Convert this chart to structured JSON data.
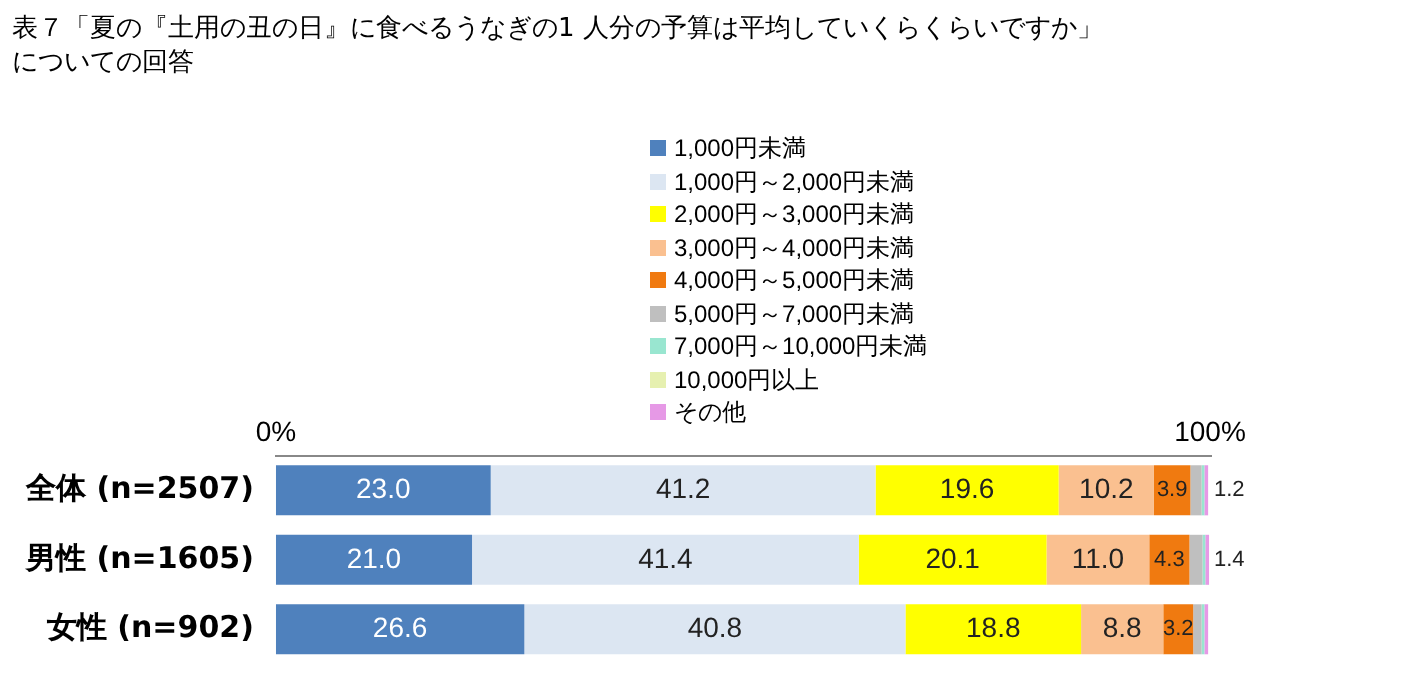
{
  "chart_data": {
    "type": "bar",
    "orientation": "horizontal",
    "stacked": true,
    "title": "表７「夏の『土用の丑の日』に食べるうなぎの1 人分の予算は平均していくらくらいですか」についての回答",
    "categories": [
      "全体 (n=2507)",
      "男性 (n=1605)",
      "女性 (n=902)"
    ],
    "xlim": [
      0,
      100
    ],
    "xticks": [
      {
        "value": 0,
        "label": "0%"
      },
      {
        "value": 100,
        "label": "100%"
      }
    ],
    "legend": "top",
    "series": [
      {
        "name": "1,000円未満",
        "color": "#4f81bd",
        "values": [
          23.0,
          21.0,
          26.6
        ],
        "value_labels": [
          "23.0",
          "21.0",
          "26.6"
        ]
      },
      {
        "name": "1,000円～2,000円未満",
        "color": "#dce6f2",
        "values": [
          41.2,
          41.4,
          40.8
        ],
        "value_labels": [
          "41.2",
          "41.4",
          "40.8"
        ]
      },
      {
        "name": "2,000円～3,000円未満",
        "color": "#ffff00",
        "values": [
          19.6,
          20.1,
          18.8
        ],
        "value_labels": [
          "19.6",
          "20.1",
          "18.8"
        ]
      },
      {
        "name": "3,000円～4,000円未満",
        "color": "#fac090",
        "values": [
          10.2,
          11.0,
          8.8
        ],
        "value_labels": [
          "10.2",
          "11.0",
          "8.8"
        ]
      },
      {
        "name": "4,000円～5,000円未満",
        "color": "#f07a10",
        "values": [
          3.9,
          4.3,
          3.2
        ],
        "value_labels": [
          "3.9",
          "4.3",
          "3.2"
        ]
      },
      {
        "name": "5,000円～7,000円未満",
        "color": "#bfbfbf",
        "values": [
          1.2,
          1.4,
          0.9
        ],
        "value_labels": [
          "1.2",
          "1.4",
          null
        ]
      },
      {
        "name": "7,000円～10,000円未満",
        "color": "#99e6d0",
        "values": [
          0.3,
          0.3,
          0.3
        ]
      },
      {
        "name": "10,000円以上",
        "color": "#e6f0b0",
        "values": [
          null,
          null,
          null
        ]
      },
      {
        "name": "その他",
        "color": "#e699e6",
        "values": [
          0.4,
          0.4,
          0.4
        ]
      }
    ]
  }
}
